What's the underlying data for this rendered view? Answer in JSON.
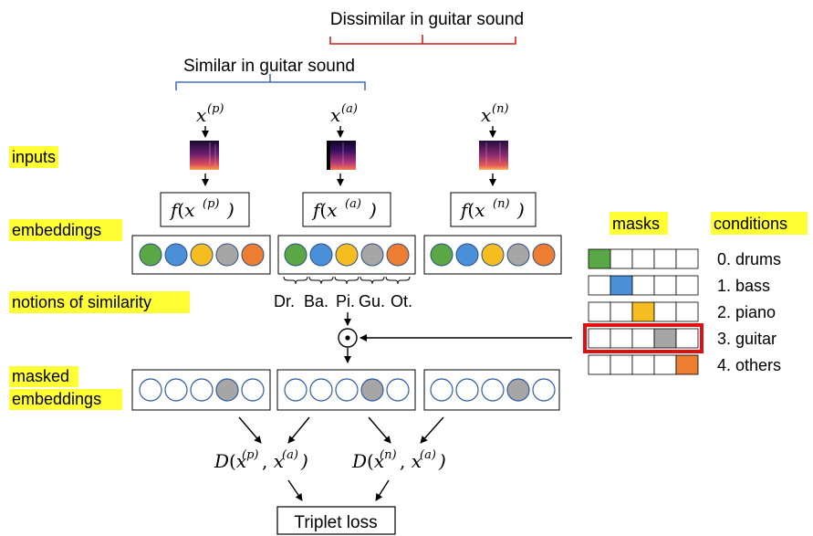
{
  "brackets": {
    "dissimilar": "Dissimilar in guitar sound",
    "similar": "Similar in guitar sound"
  },
  "row_labels": {
    "inputs": "inputs",
    "embeddings": "embeddings",
    "notions": "notions of similarity",
    "masked_line1": "masked",
    "masked_line2": "embeddings"
  },
  "inputs": [
    {
      "var": "x",
      "sup": "(p)"
    },
    {
      "var": "x",
      "sup": "(a)"
    },
    {
      "var": "x",
      "sup": "(n)"
    }
  ],
  "embedding_fn": "f",
  "notions": [
    "Dr.",
    "Ba.",
    "Pi.",
    "Gu.",
    "Ot."
  ],
  "mask_operator": "⊙",
  "masks_header": "masks",
  "conditions_header": "conditions",
  "conditions": [
    "0. drums",
    "1. bass",
    "2. piano",
    "3. guitar",
    "4. others"
  ],
  "highlighted_condition_index": 3,
  "distances": [
    {
      "fn": "D",
      "first": {
        "var": "x",
        "sup": "(p)"
      },
      "second": {
        "var": "x",
        "sup": "(a)"
      }
    },
    {
      "fn": "D",
      "first": {
        "var": "x",
        "sup": "(n)"
      },
      "second": {
        "var": "x",
        "sup": "(a)"
      }
    }
  ],
  "loss": "Triplet loss",
  "colors": {
    "drums": "#5aa845",
    "bass": "#4a90d9",
    "piano": "#f5bd1f",
    "guitar": "#a6a6a6",
    "others": "#ed7d31",
    "masked_ring": "#2e5b9c",
    "similar_bracket": "#4472c4",
    "dissimilar_bracket": "#cc2222",
    "highlight": "#ffff33",
    "selected_mask_border": "#e01010"
  }
}
